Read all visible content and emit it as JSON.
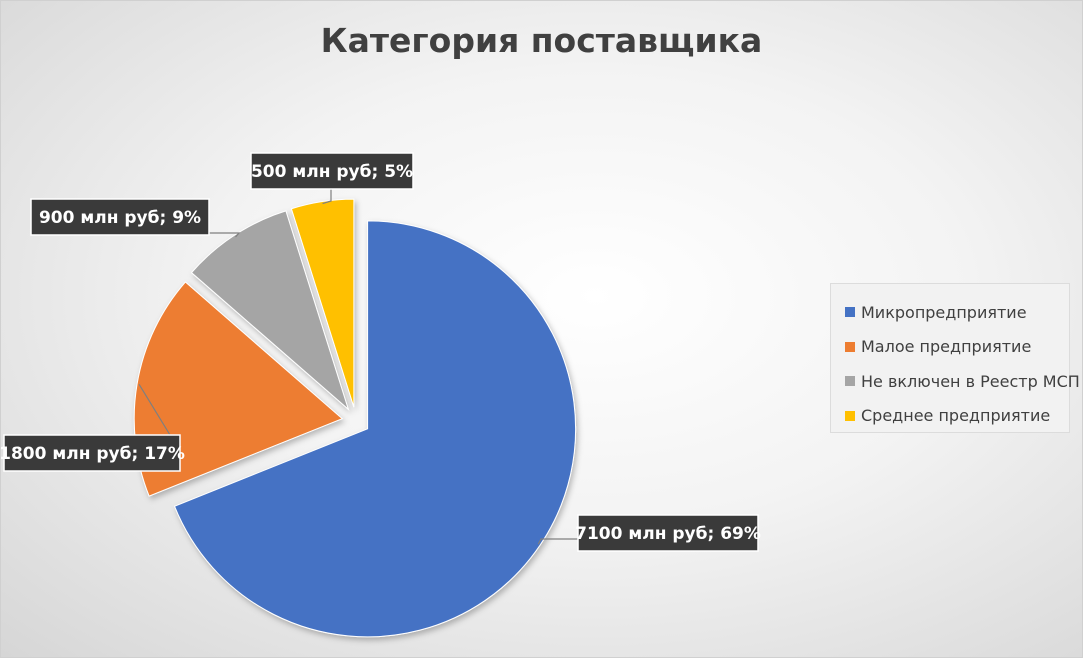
{
  "chart_data": {
    "type": "pie",
    "title": "Категория поставщика",
    "categories": [
      "Микропредприятие",
      "Малое предприятие",
      "Не включен в Реестр МСП",
      "Среднее предприятие"
    ],
    "values": [
      7100,
      1800,
      900,
      500
    ],
    "percents": [
      69,
      17,
      9,
      5
    ],
    "data_labels": [
      "7100 млн руб; 69%",
      "1800 млн руб; 17%",
      "900 млн руб; 9%",
      "500 млн руб; 5%"
    ],
    "colors": [
      "#4472c4",
      "#ed7d31",
      "#a5a5a5",
      "#ffc000"
    ],
    "exploded": true,
    "legend_position": "right"
  }
}
